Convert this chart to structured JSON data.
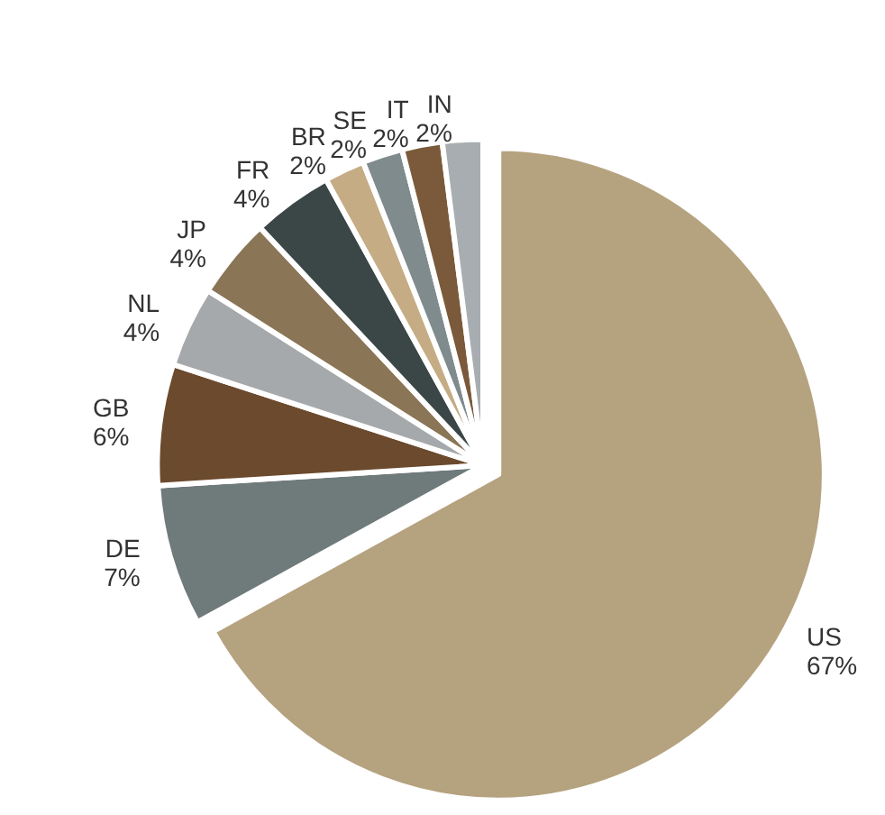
{
  "chart_data": {
    "type": "pie",
    "categories": [
      "US",
      "DE",
      "GB",
      "NL",
      "JP",
      "FR",
      "BR",
      "SE",
      "IT",
      "IN"
    ],
    "values": [
      67,
      7,
      6,
      4,
      4,
      4,
      2,
      2,
      2,
      2
    ],
    "value_labels": [
      "67%",
      "7%",
      "6%",
      "4%",
      "4%",
      "4%",
      "2%",
      "2%",
      "2%",
      "2%"
    ],
    "colors": [
      "#b5a27f",
      "#6f7a7a",
      "#6b4a2e",
      "#a6a9ab",
      "#8a7556",
      "#3b4646",
      "#c5ac84",
      "#7f8b8d",
      "#7a5a3a",
      "#a7adb0"
    ],
    "legend": false
  }
}
